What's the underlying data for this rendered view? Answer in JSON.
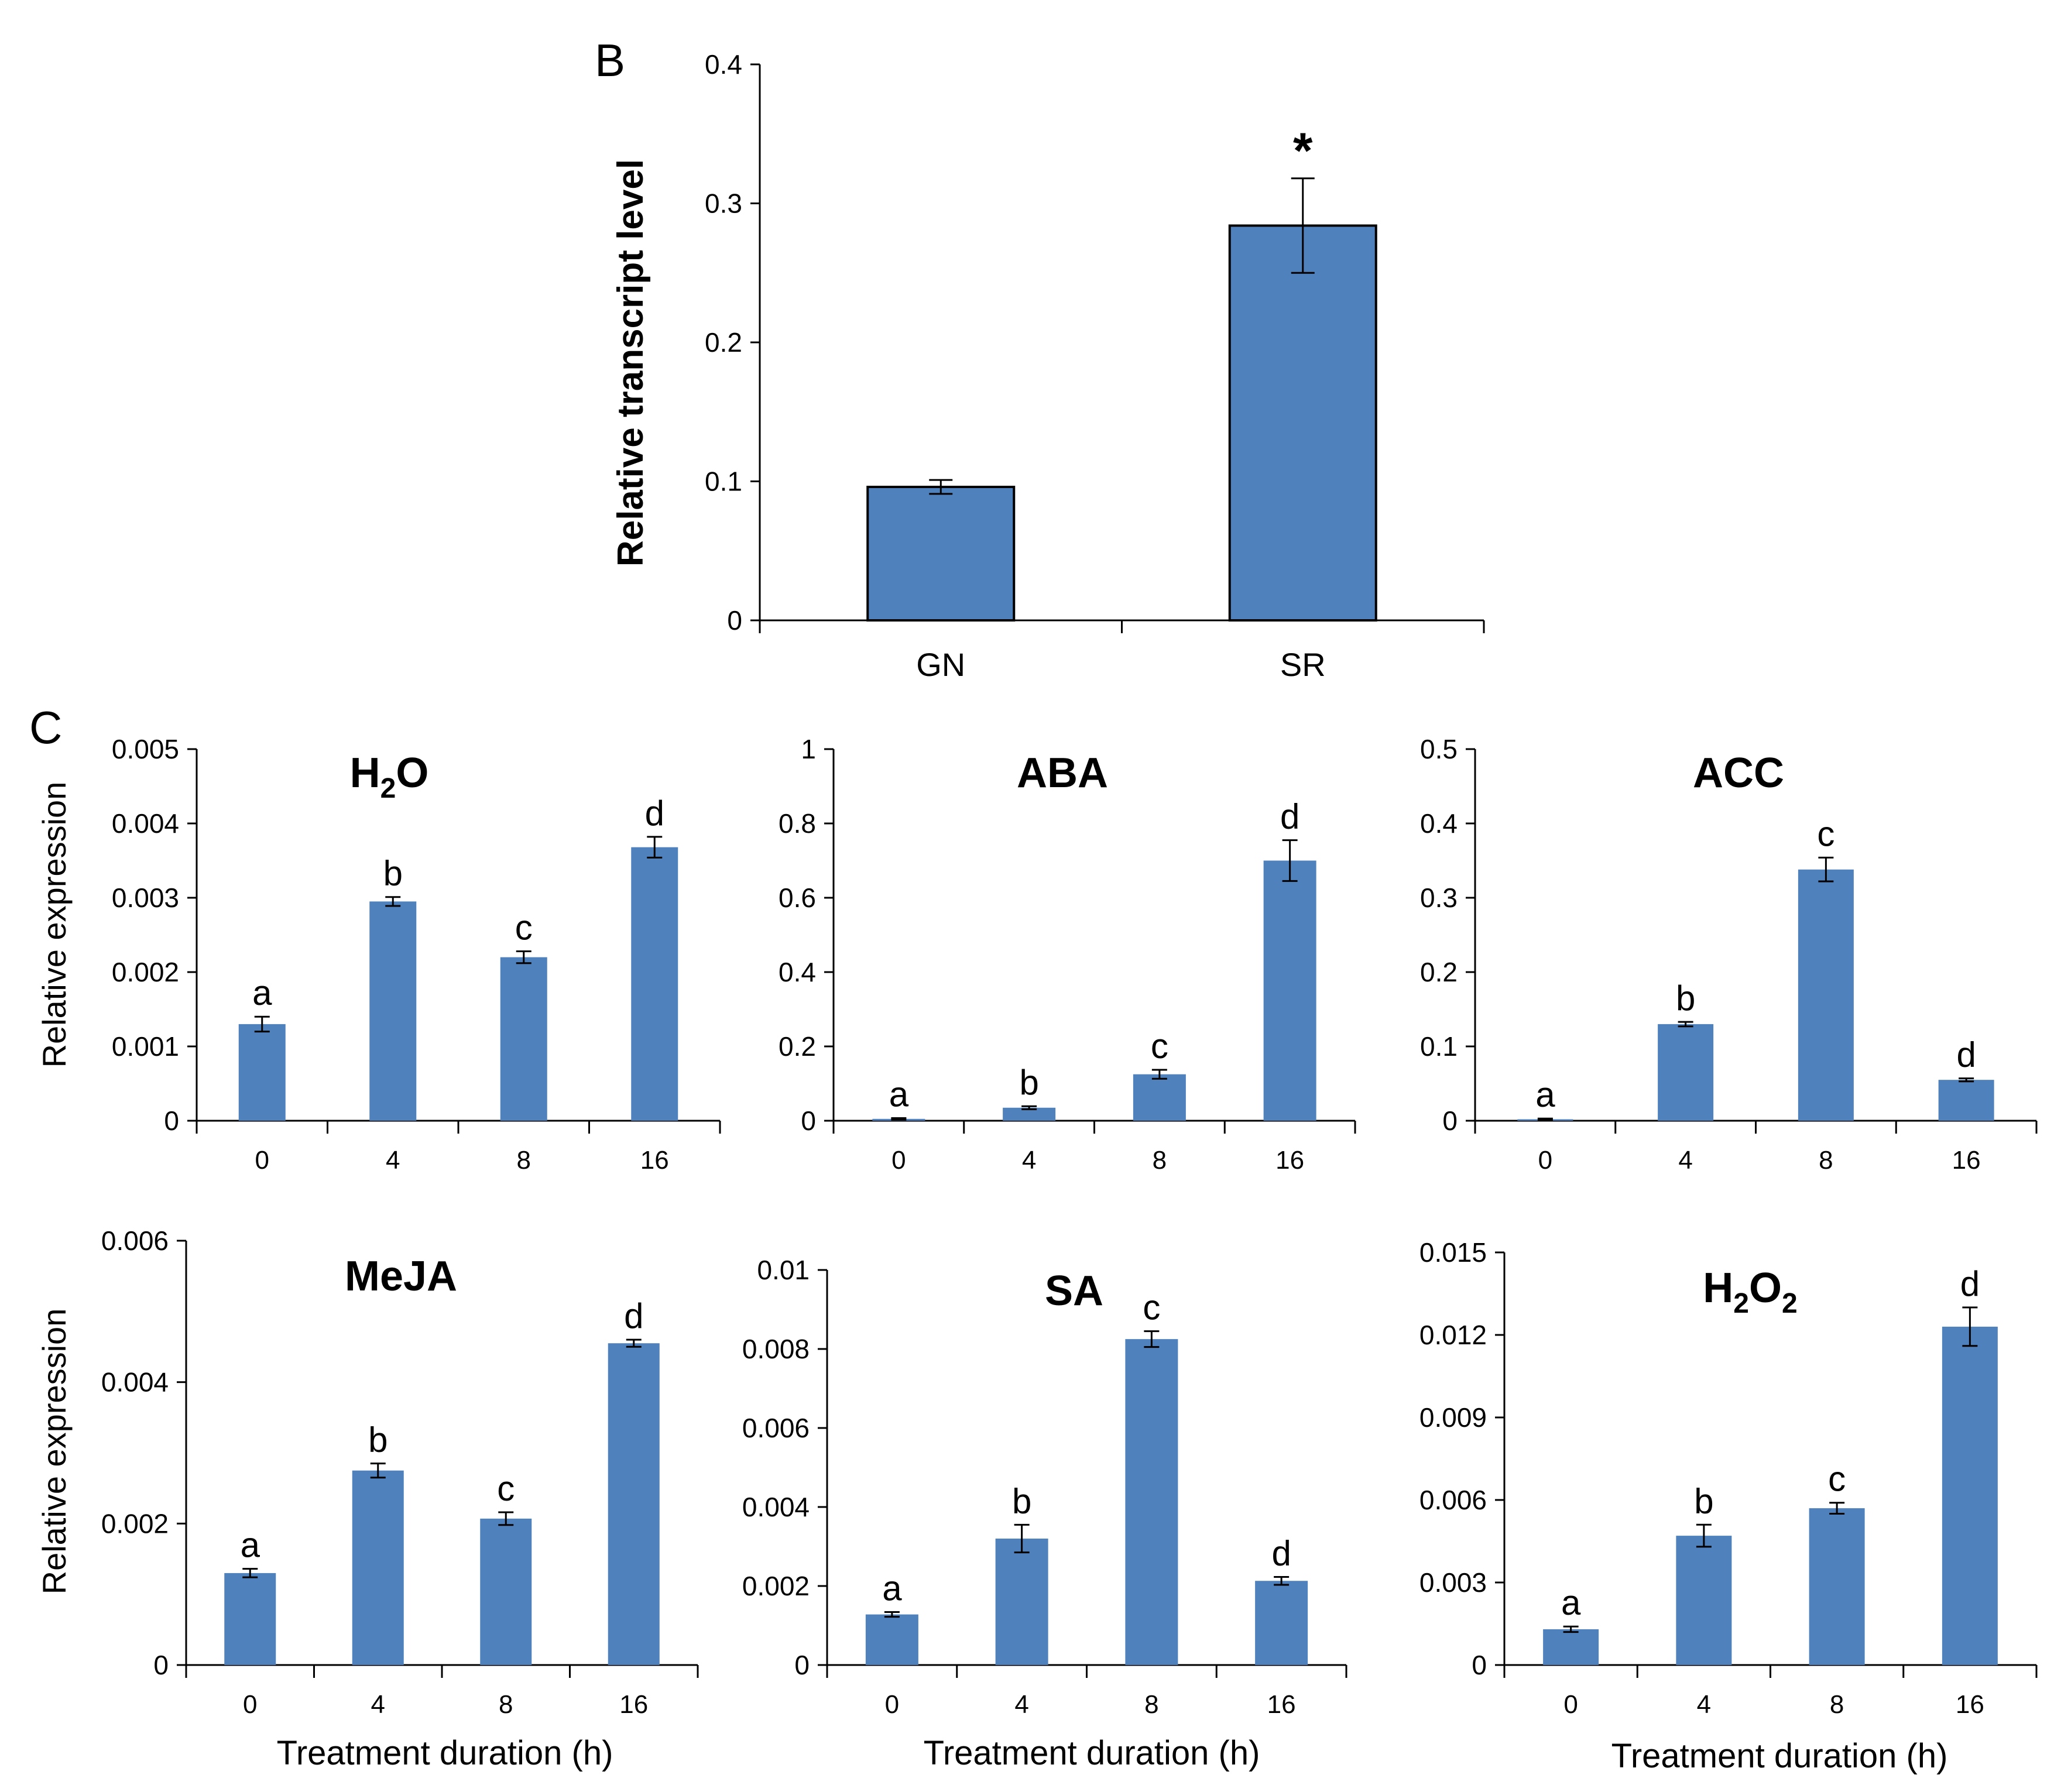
{
  "panels": {
    "b_letter": "B",
    "c_letter": "C"
  },
  "colors": {
    "bar": "#4F81BD",
    "bar_edge": "#000000",
    "axis": "#000000"
  },
  "chart_data": [
    {
      "id": "B",
      "type": "bar",
      "title": "",
      "categories": [
        "GN",
        "SR"
      ],
      "values": [
        0.096,
        0.284
      ],
      "errors": [
        0.005,
        0.034
      ],
      "annotations": [
        "",
        "*"
      ],
      "ylabel": "Relative transcript level",
      "xlabel": "",
      "ylim": [
        0,
        0.4
      ],
      "yticks": [
        "0",
        "0.1",
        "0.2",
        "0.3",
        "0.4"
      ]
    },
    {
      "id": "H2O",
      "type": "bar",
      "title": "H",
      "title_sub": "2",
      "title_tail": "O",
      "categories": [
        "0",
        "4",
        "8",
        "16"
      ],
      "values": [
        0.0013,
        0.00295,
        0.0022,
        0.00368
      ],
      "errors": [
        0.0001,
        6e-05,
        8e-05,
        0.00014
      ],
      "annotations": [
        "a",
        "b",
        "c",
        "d"
      ],
      "ylabel": "Relative expression",
      "xlabel": "",
      "ylim": [
        0,
        0.005
      ],
      "yticks": [
        "0",
        "0.001",
        "0.002",
        "0.003",
        "0.004",
        "0.005"
      ]
    },
    {
      "id": "ABA",
      "type": "bar",
      "title": "ABA",
      "categories": [
        "0",
        "4",
        "8",
        "16"
      ],
      "values": [
        0.005,
        0.035,
        0.125,
        0.7
      ],
      "errors": [
        0.002,
        0.004,
        0.012,
        0.055
      ],
      "annotations": [
        "a",
        "b",
        "c",
        "d"
      ],
      "ylabel": "",
      "xlabel": "",
      "ylim": [
        0,
        1
      ],
      "yticks": [
        "0",
        "0.2",
        "0.4",
        "0.6",
        "0.8",
        "1"
      ]
    },
    {
      "id": "ACC",
      "type": "bar",
      "title": "ACC",
      "categories": [
        "0",
        "4",
        "8",
        "16"
      ],
      "values": [
        0.002,
        0.13,
        0.338,
        0.055
      ],
      "errors": [
        0.001,
        0.003,
        0.016,
        0.002
      ],
      "annotations": [
        "a",
        "b",
        "c",
        "d"
      ],
      "ylabel": "",
      "xlabel": "",
      "ylim": [
        0,
        0.5
      ],
      "yticks": [
        "0",
        "0.1",
        "0.2",
        "0.3",
        "0.4",
        "0.5"
      ]
    },
    {
      "id": "MeJA",
      "type": "bar",
      "title": "MeJA",
      "categories": [
        "0",
        "4",
        "8",
        "16"
      ],
      "values": [
        0.0013,
        0.00275,
        0.00207,
        0.00455
      ],
      "errors": [
        6e-05,
        0.0001,
        9e-05,
        5e-05
      ],
      "annotations": [
        "a",
        "b",
        "c",
        "d"
      ],
      "ylabel": "Relative expression",
      "xlabel": "Treatment duration (h)",
      "ylim": [
        0,
        0.006
      ],
      "yticks": [
        "0",
        "0.002",
        "0.004",
        "0.006"
      ]
    },
    {
      "id": "SA",
      "type": "bar",
      "title": "SA",
      "categories": [
        "0",
        "4",
        "8",
        "16"
      ],
      "values": [
        0.00128,
        0.0032,
        0.00825,
        0.00213
      ],
      "errors": [
        6e-05,
        0.00035,
        0.0002,
        0.0001
      ],
      "annotations": [
        "a",
        "b",
        "c",
        "d"
      ],
      "ylabel": "",
      "xlabel": "Treatment duration (h)",
      "ylim": [
        0,
        0.01
      ],
      "yticks": [
        "0",
        "0.002",
        "0.004",
        "0.006",
        "0.008",
        "0.01"
      ]
    },
    {
      "id": "H2O2",
      "type": "bar",
      "title": "H",
      "title_sub": "2",
      "title_tail": "O",
      "title_sub2": "2",
      "categories": [
        "0",
        "4",
        "8",
        "16"
      ],
      "values": [
        0.0013,
        0.0047,
        0.0057,
        0.0123
      ],
      "errors": [
        0.0001,
        0.0004,
        0.0002,
        0.0007
      ],
      "annotations": [
        "a",
        "b",
        "c",
        "d"
      ],
      "ylabel": "",
      "xlabel": "Treatment duration (h)",
      "ylim": [
        0,
        0.015
      ],
      "yticks": [
        "0",
        "0.003",
        "0.006",
        "0.009",
        "0.012",
        "0.015"
      ]
    }
  ]
}
